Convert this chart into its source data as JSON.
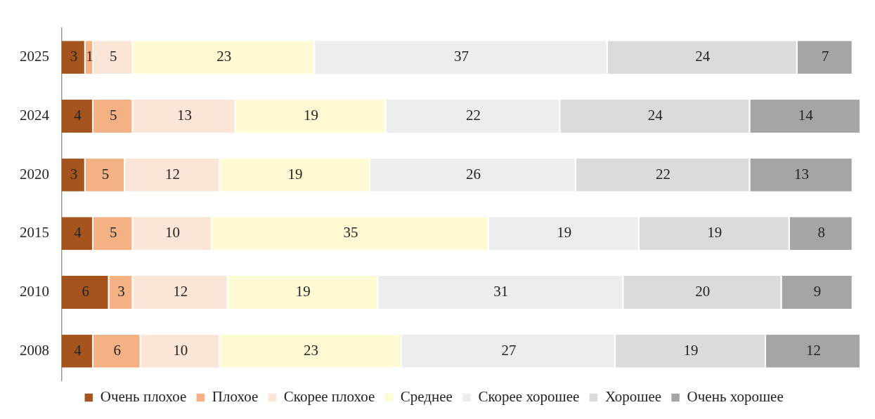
{
  "chart_data": {
    "type": "bar",
    "orientation": "horizontal",
    "stacked": true,
    "data_labels": true,
    "legend": "bottom",
    "grid": false,
    "tick_labels": "y",
    "xlim": [
      0,
      101
    ],
    "categories": [
      "2025",
      "2024",
      "2020",
      "2015",
      "2010",
      "2008"
    ],
    "series": [
      {
        "name": "Очень плохое",
        "color": "#a5541e",
        "values": [
          3,
          4,
          3,
          4,
          6,
          4
        ]
      },
      {
        "name": "Плохое",
        "color": "#f4b183",
        "values": [
          1,
          5,
          5,
          5,
          3,
          6
        ]
      },
      {
        "name": "Скорее плохое",
        "color": "#fbe5d6",
        "values": [
          5,
          13,
          12,
          10,
          12,
          10
        ]
      },
      {
        "name": "Среднее",
        "color": "#fefbd4",
        "values": [
          23,
          19,
          19,
          35,
          19,
          23
        ]
      },
      {
        "name": "Скорее хорошее",
        "color": "#ededed",
        "values": [
          37,
          22,
          26,
          19,
          31,
          27
        ]
      },
      {
        "name": "Хорошее",
        "color": "#dbdbdb",
        "values": [
          24,
          24,
          22,
          19,
          20,
          19
        ]
      },
      {
        "name": "Очень хорошее",
        "color": "#a5a5a5",
        "values": [
          7,
          14,
          13,
          8,
          9,
          12
        ]
      }
    ]
  }
}
